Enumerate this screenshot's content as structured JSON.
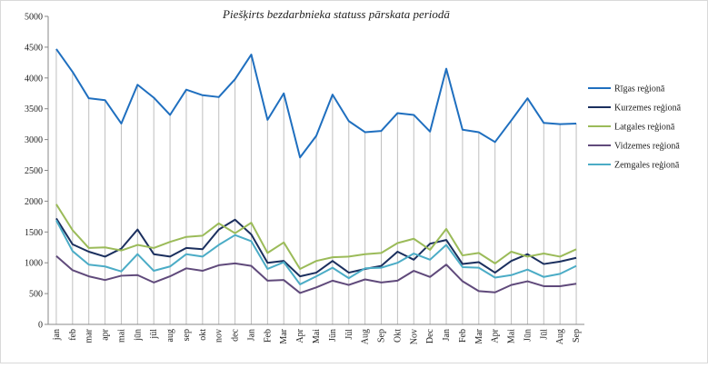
{
  "chart_data": {
    "type": "line",
    "title": "Piešķirts bezdarbnieka statuss pārskata periodā",
    "categories": [
      "jan",
      "feb",
      "mar",
      "apr",
      "mai",
      "jūn",
      "jūl",
      "aug",
      "sep",
      "okt",
      "nov",
      "dec",
      "Jan",
      "Feb",
      "Mar",
      "Apr",
      "Mai",
      "Jūn",
      "Jūl",
      "Aug",
      "Sep",
      "Okt",
      "Nov",
      "Dec",
      "Jan",
      "Feb",
      "Mar",
      "Apr",
      "Mai",
      "Jūn",
      "Jūl",
      "Aug",
      "Sep"
    ],
    "series": [
      {
        "name": "Rīgas reģionā",
        "color": "#1f6fbf",
        "values": [
          4470,
          4100,
          3670,
          3640,
          3260,
          3890,
          3680,
          3400,
          3810,
          3720,
          3690,
          3980,
          4380,
          3320,
          3750,
          2710,
          3060,
          3730,
          3300,
          3120,
          3140,
          3430,
          3400,
          3130,
          4150,
          3160,
          3120,
          2960,
          3310,
          3670,
          3270,
          3250,
          3260
        ]
      },
      {
        "name": "Kurzemes reģionā",
        "color": "#1b2f5e",
        "values": [
          1720,
          1300,
          1180,
          1100,
          1230,
          1540,
          1140,
          1100,
          1240,
          1220,
          1540,
          1700,
          1460,
          1000,
          1030,
          780,
          840,
          1030,
          840,
          900,
          950,
          1180,
          1050,
          1310,
          1370,
          980,
          1010,
          840,
          1030,
          1140,
          980,
          1020,
          1080
        ]
      },
      {
        "name": "Latgales reģionā",
        "color": "#9bbb59",
        "values": [
          1950,
          1530,
          1240,
          1250,
          1200,
          1290,
          1240,
          1340,
          1420,
          1440,
          1640,
          1480,
          1650,
          1160,
          1330,
          900,
          1030,
          1090,
          1100,
          1140,
          1160,
          1320,
          1390,
          1210,
          1550,
          1120,
          1160,
          990,
          1180,
          1100,
          1150,
          1100,
          1220
        ]
      },
      {
        "name": "Vidzemes reģionā",
        "color": "#604a7b",
        "values": [
          1110,
          880,
          780,
          720,
          790,
          800,
          680,
          780,
          910,
          870,
          960,
          990,
          950,
          710,
          720,
          510,
          600,
          710,
          640,
          730,
          680,
          710,
          870,
          770,
          970,
          700,
          540,
          520,
          640,
          700,
          620,
          620,
          660
        ]
      },
      {
        "name": "Zemgales reģionā",
        "color": "#4bacc6",
        "values": [
          1690,
          1190,
          970,
          940,
          860,
          1140,
          870,
          940,
          1140,
          1100,
          1290,
          1450,
          1350,
          900,
          1010,
          650,
          780,
          920,
          750,
          910,
          920,
          1000,
          1150,
          1050,
          1290,
          930,
          920,
          760,
          800,
          890,
          770,
          820,
          950
        ]
      }
    ],
    "ylim": [
      0,
      5000
    ],
    "yticks": [
      0,
      500,
      1000,
      1500,
      2000,
      2500,
      3000,
      3500,
      4000,
      4500,
      5000
    ],
    "legend": "right"
  }
}
